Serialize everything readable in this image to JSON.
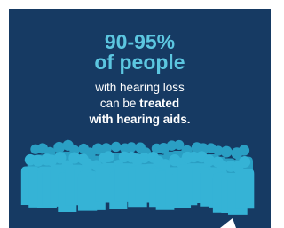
{
  "headline": {
    "line1": "90-95%",
    "line2": "of people"
  },
  "body": {
    "line1": "with hearing loss",
    "line2_plain": "can be",
    "line2_bold": "treated",
    "line3": "with hearing aids."
  }
}
